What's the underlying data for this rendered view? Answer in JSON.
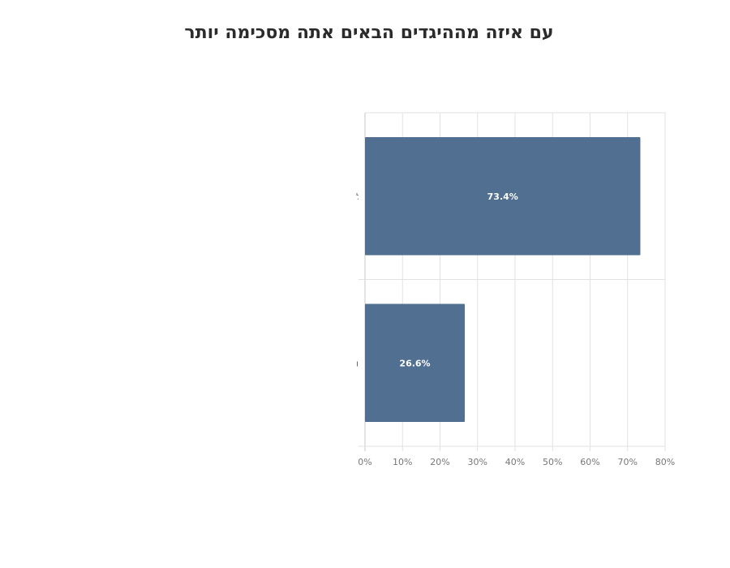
{
  "chart_data": {
    "type": "bar",
    "orientation": "horizontal",
    "title": "עם איזה מההיגדים הבאים אתה מסכימה יותר",
    "categories": [
      "כרגע הדבר הנכון עבור מדינת ישראל הוא קודם להשיב את החטופים ורק לאחר מכן ל",
      "מיטוט חמאס חשוב יותר מהשבת החטופים על מנת למנוע טבח נוסף כמו ה7 באוקטוו"
    ],
    "values": [
      73.4,
      26.6
    ],
    "data_labels": [
      "73.4%",
      "26.6%"
    ],
    "xlim": [
      0,
      80
    ],
    "x_ticks": [
      "0%",
      "10%",
      "20%",
      "30%",
      "40%",
      "50%",
      "60%",
      "70%",
      "80%"
    ],
    "grid": true,
    "bar_color": "#516f91",
    "label_color": "#ffffff",
    "xlabel": "",
    "ylabel": ""
  }
}
